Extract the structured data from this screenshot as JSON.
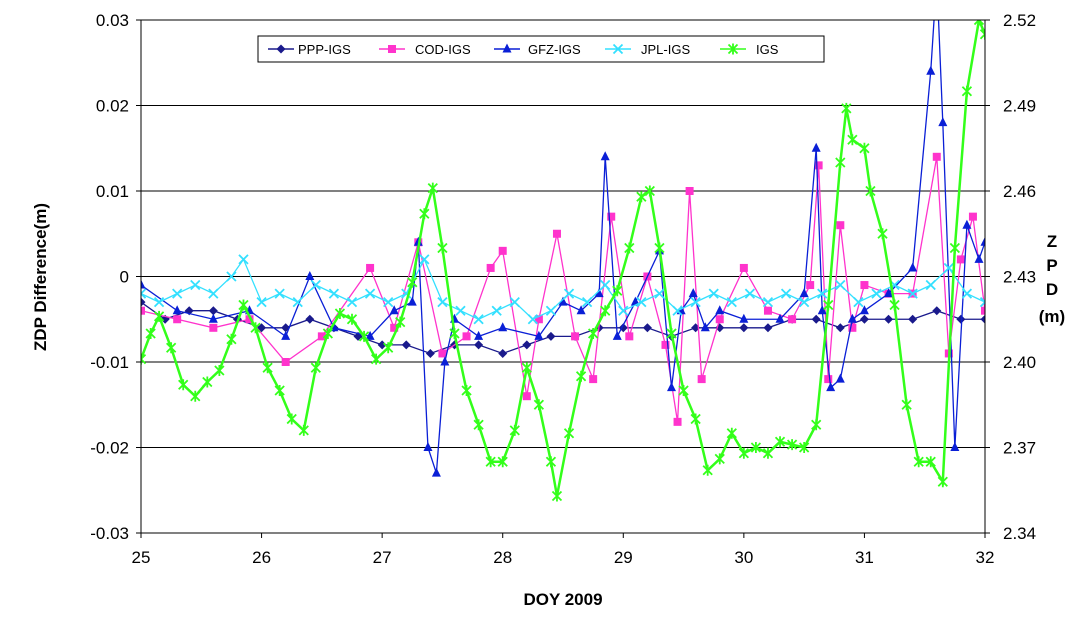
{
  "chart_data": {
    "type": "line",
    "title": "",
    "xlabel": "DOY 2009",
    "ylabel": "ZDP Difference(m)",
    "y2label": [
      "Z",
      "P",
      "D",
      "(m)"
    ],
    "xlim": [
      25,
      32
    ],
    "ylim": [
      -0.03,
      0.03
    ],
    "y2lim": [
      2.34,
      2.52
    ],
    "x_ticks": [
      "25",
      "26",
      "27",
      "28",
      "29",
      "30",
      "31",
      "32"
    ],
    "y_ticks": [
      "-0.03",
      "-0.02",
      "-0.01",
      "0",
      "0.01",
      "0.02",
      "0.03"
    ],
    "y2_ticks": [
      "2.34",
      "2.37",
      "2.40",
      "2.43",
      "2.46",
      "2.49",
      "2.52"
    ],
    "grid": "horizontal",
    "legend_position": "top-center",
    "series": [
      {
        "name": "PPP-IGS",
        "color": "#1a1a8c",
        "marker": "diamond",
        "axis": "left",
        "x": [
          25.0,
          25.2,
          25.4,
          25.6,
          25.8,
          26.0,
          26.2,
          26.4,
          26.6,
          26.8,
          27.0,
          27.2,
          27.4,
          27.6,
          27.8,
          28.0,
          28.2,
          28.4,
          28.6,
          28.8,
          29.0,
          29.2,
          29.4,
          29.6,
          29.8,
          30.0,
          30.2,
          30.4,
          30.6,
          30.8,
          31.0,
          31.2,
          31.4,
          31.6,
          31.8,
          32.0
        ],
        "y": [
          -0.003,
          -0.005,
          -0.004,
          -0.004,
          -0.005,
          -0.006,
          -0.006,
          -0.005,
          -0.006,
          -0.007,
          -0.008,
          -0.008,
          -0.009,
          -0.008,
          -0.008,
          -0.009,
          -0.008,
          -0.007,
          -0.007,
          -0.006,
          -0.006,
          -0.006,
          -0.007,
          -0.006,
          -0.006,
          -0.006,
          -0.006,
          -0.005,
          -0.005,
          -0.006,
          -0.005,
          -0.005,
          -0.005,
          -0.004,
          -0.005,
          -0.005
        ]
      },
      {
        "name": "COD-IGS",
        "color": "#ff33cc",
        "marker": "square",
        "axis": "left",
        "x": [
          25.0,
          25.3,
          25.6,
          25.9,
          26.2,
          26.5,
          26.9,
          27.1,
          27.3,
          27.5,
          27.7,
          27.9,
          28.0,
          28.2,
          28.3,
          28.45,
          28.6,
          28.75,
          28.9,
          29.05,
          29.2,
          29.35,
          29.45,
          29.55,
          29.65,
          29.8,
          30.0,
          30.2,
          30.4,
          30.55,
          30.62,
          30.7,
          30.8,
          30.9,
          31.0,
          31.2,
          31.4,
          31.6,
          31.7,
          31.8,
          31.9,
          32.0
        ],
        "y": [
          -0.004,
          -0.005,
          -0.006,
          -0.005,
          -0.01,
          -0.007,
          0.001,
          -0.006,
          0.004,
          -0.009,
          -0.007,
          0.001,
          0.003,
          -0.014,
          -0.005,
          0.005,
          -0.007,
          -0.012,
          0.007,
          -0.007,
          0.0,
          -0.008,
          -0.017,
          0.01,
          -0.012,
          -0.005,
          0.001,
          -0.004,
          -0.005,
          -0.001,
          0.013,
          -0.012,
          0.006,
          -0.006,
          -0.001,
          -0.002,
          -0.002,
          0.014,
          -0.009,
          0.002,
          0.007,
          -0.004
        ]
      },
      {
        "name": "GFZ-IGS",
        "color": "#0a1fd6",
        "marker": "triangle",
        "axis": "left",
        "x": [
          25.0,
          25.3,
          25.6,
          25.9,
          26.2,
          26.4,
          26.6,
          26.9,
          27.1,
          27.25,
          27.3,
          27.38,
          27.45,
          27.52,
          27.6,
          27.8,
          28.0,
          28.3,
          28.5,
          28.65,
          28.8,
          28.85,
          28.95,
          29.1,
          29.3,
          29.4,
          29.48,
          29.58,
          29.68,
          29.8,
          30.0,
          30.3,
          30.5,
          30.6,
          30.65,
          30.72,
          30.8,
          30.9,
          31.0,
          31.2,
          31.4,
          31.55,
          31.6,
          31.65,
          31.75,
          31.85,
          31.95,
          32.0
        ],
        "y": [
          -0.001,
          -0.004,
          -0.005,
          -0.004,
          -0.007,
          0.0,
          -0.006,
          -0.007,
          -0.004,
          -0.003,
          0.004,
          -0.02,
          -0.023,
          -0.01,
          -0.005,
          -0.007,
          -0.006,
          -0.007,
          -0.003,
          -0.004,
          -0.002,
          0.014,
          -0.007,
          -0.003,
          0.003,
          -0.013,
          -0.004,
          -0.002,
          -0.006,
          -0.004,
          -0.005,
          -0.005,
          -0.002,
          0.015,
          -0.004,
          -0.013,
          -0.012,
          -0.005,
          -0.004,
          -0.002,
          0.001,
          0.024,
          0.035,
          0.018,
          -0.02,
          0.006,
          0.002,
          0.004
        ]
      },
      {
        "name": "JPL-IGS",
        "color": "#33e0ff",
        "marker": "x",
        "axis": "left",
        "x": [
          25.0,
          25.15,
          25.3,
          25.45,
          25.6,
          25.75,
          25.85,
          26.0,
          26.15,
          26.3,
          26.45,
          26.6,
          26.75,
          26.9,
          27.05,
          27.2,
          27.35,
          27.5,
          27.65,
          27.8,
          27.95,
          28.1,
          28.25,
          28.4,
          28.55,
          28.7,
          28.85,
          29.0,
          29.15,
          29.3,
          29.45,
          29.6,
          29.75,
          29.9,
          30.05,
          30.2,
          30.35,
          30.5,
          30.65,
          30.8,
          30.95,
          31.1,
          31.25,
          31.4,
          31.55,
          31.7,
          31.85,
          32.0
        ],
        "y": [
          -0.002,
          -0.003,
          -0.002,
          -0.001,
          -0.002,
          0.0,
          0.002,
          -0.003,
          -0.002,
          -0.003,
          -0.001,
          -0.002,
          -0.003,
          -0.002,
          -0.003,
          -0.002,
          0.002,
          -0.003,
          -0.004,
          -0.005,
          -0.004,
          -0.003,
          -0.005,
          -0.004,
          -0.002,
          -0.003,
          -0.001,
          -0.004,
          -0.003,
          -0.002,
          -0.004,
          -0.003,
          -0.002,
          -0.003,
          -0.002,
          -0.003,
          -0.002,
          -0.003,
          -0.002,
          -0.001,
          -0.003,
          -0.002,
          -0.001,
          -0.002,
          -0.001,
          0.001,
          -0.002,
          -0.003
        ]
      },
      {
        "name": "IGS",
        "color": "#33ff1a",
        "marker": "star",
        "axis": "right",
        "x": [
          25.0,
          25.08,
          25.15,
          25.25,
          25.35,
          25.45,
          25.55,
          25.65,
          25.75,
          25.85,
          25.95,
          26.05,
          26.15,
          26.25,
          26.35,
          26.45,
          26.55,
          26.65,
          26.75,
          26.85,
          26.95,
          27.05,
          27.15,
          27.25,
          27.35,
          27.42,
          27.5,
          27.6,
          27.7,
          27.8,
          27.9,
          28.0,
          28.1,
          28.2,
          28.3,
          28.4,
          28.45,
          28.55,
          28.65,
          28.75,
          28.85,
          28.95,
          29.05,
          29.15,
          29.22,
          29.3,
          29.4,
          29.5,
          29.6,
          29.7,
          29.8,
          29.9,
          30.0,
          30.1,
          30.2,
          30.3,
          30.4,
          30.5,
          30.6,
          30.7,
          30.8,
          30.85,
          30.9,
          31.0,
          31.05,
          31.15,
          31.25,
          31.35,
          31.45,
          31.55,
          31.65,
          31.75,
          31.85,
          31.95,
          32.0
        ],
        "y": [
          2.401,
          2.41,
          2.416,
          2.405,
          2.392,
          2.388,
          2.393,
          2.397,
          2.408,
          2.42,
          2.412,
          2.398,
          2.39,
          2.38,
          2.376,
          2.398,
          2.41,
          2.417,
          2.415,
          2.409,
          2.401,
          2.405,
          2.414,
          2.428,
          2.452,
          2.461,
          2.44,
          2.41,
          2.39,
          2.378,
          2.365,
          2.365,
          2.376,
          2.398,
          2.385,
          2.365,
          2.353,
          2.375,
          2.395,
          2.41,
          2.418,
          2.425,
          2.44,
          2.458,
          2.46,
          2.44,
          2.41,
          2.39,
          2.38,
          2.362,
          2.366,
          2.375,
          2.368,
          2.37,
          2.368,
          2.372,
          2.371,
          2.37,
          2.378,
          2.42,
          2.47,
          2.489,
          2.478,
          2.475,
          2.46,
          2.445,
          2.42,
          2.385,
          2.365,
          2.365,
          2.358,
          2.44,
          2.495,
          2.52,
          2.515
        ]
      }
    ]
  }
}
